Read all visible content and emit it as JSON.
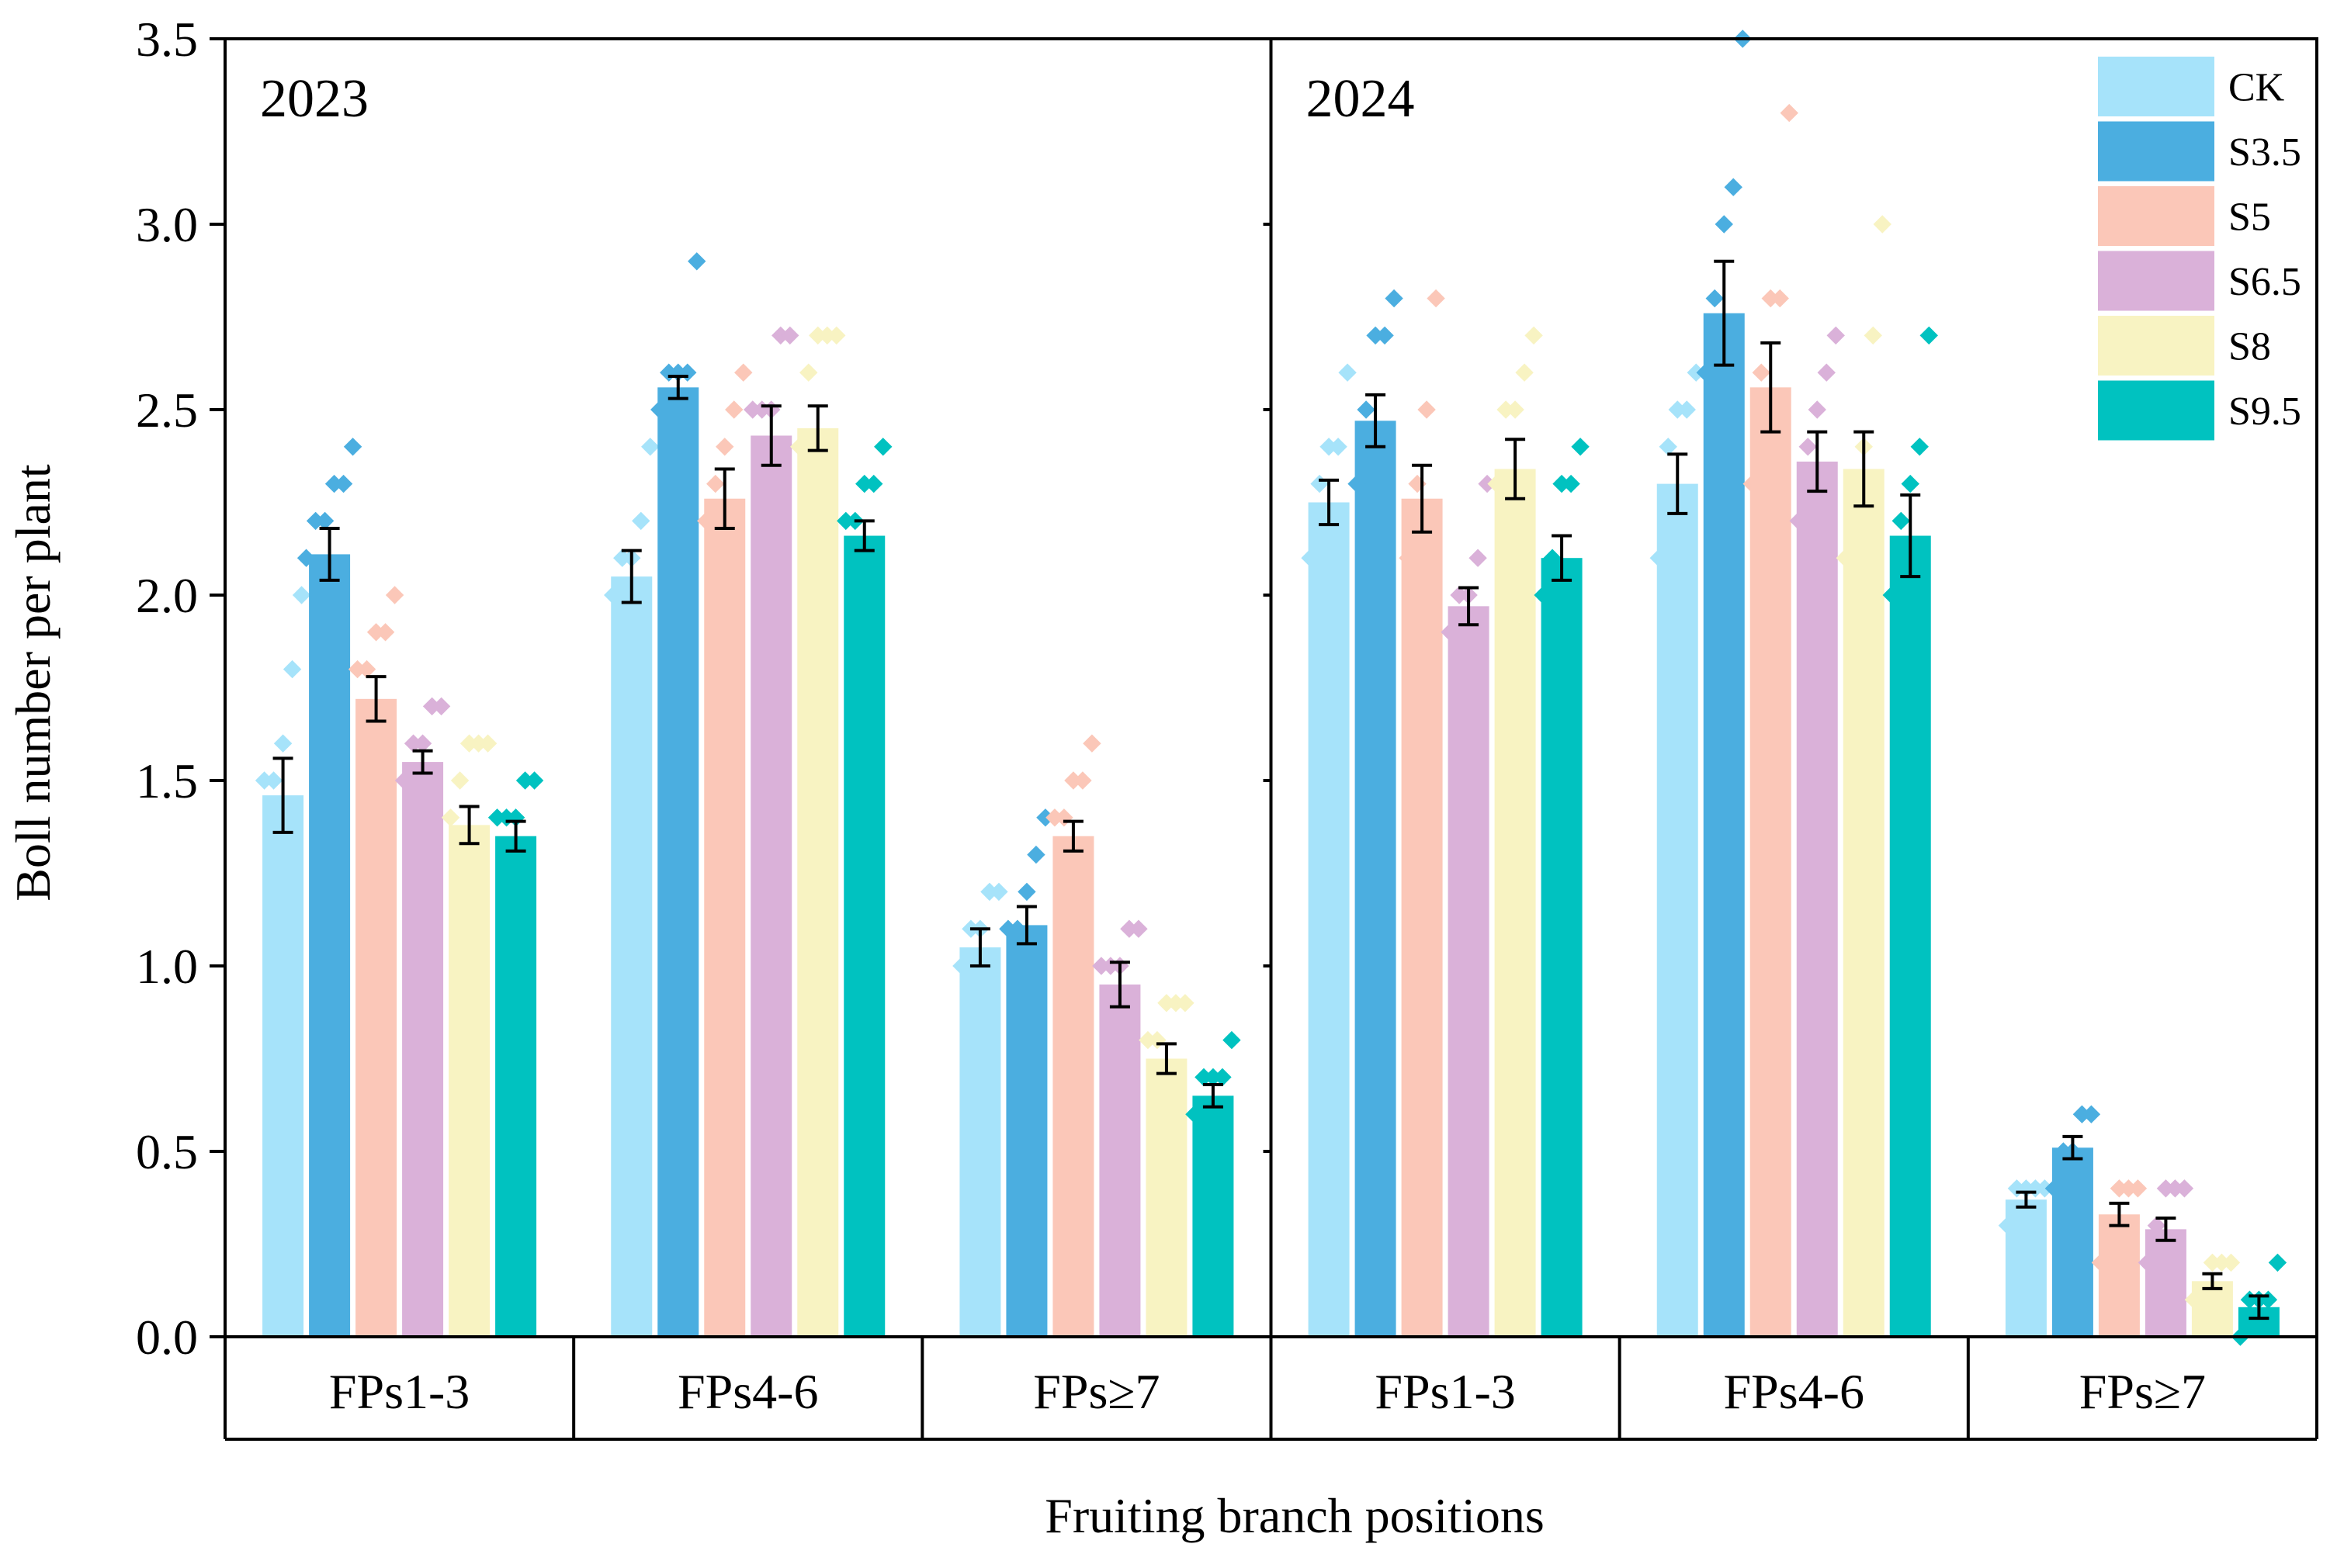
{
  "chart_data": {
    "type": "bar",
    "ylabel": "Boll number per plant",
    "xlabel": "Fruiting branch positions",
    "ylim": [
      0,
      3.5
    ],
    "yticks": [
      "0.0",
      "0.5",
      "1.0",
      "1.5",
      "2.0",
      "2.5",
      "3.0",
      "3.5"
    ],
    "legend_position": "top-right",
    "series": [
      {
        "name": "CK",
        "color": "#A6E3FA"
      },
      {
        "name": "S3.5",
        "color": "#4BAEE0"
      },
      {
        "name": "S5",
        "color": "#FBC7B8"
      },
      {
        "name": "S6.5",
        "color": "#DAB1D9"
      },
      {
        "name": "S8",
        "color": "#F8F3C2"
      },
      {
        "name": "S9.5",
        "color": "#00C2C0"
      }
    ],
    "panels": [
      {
        "title": "2023",
        "categories": [
          "FPs1-3",
          "FPs4-6",
          "FPs≥7"
        ],
        "values": [
          [
            1.46,
            2.11,
            1.72,
            1.55,
            1.38,
            1.35
          ],
          [
            2.05,
            2.56,
            2.26,
            2.43,
            2.45,
            2.16
          ],
          [
            1.05,
            1.11,
            1.35,
            0.95,
            0.75,
            0.65
          ]
        ],
        "errors": [
          [
            0.1,
            0.07,
            0.06,
            0.03,
            0.05,
            0.04
          ],
          [
            0.07,
            0.03,
            0.08,
            0.08,
            0.06,
            0.04
          ],
          [
            0.05,
            0.05,
            0.04,
            0.06,
            0.04,
            0.03
          ]
        ],
        "points": [
          [
            [
              1.5,
              1.5,
              1.6,
              1.8,
              2.0
            ],
            [
              2.1,
              2.2,
              2.2,
              2.3,
              2.3,
              2.4
            ],
            [
              1.8,
              1.8,
              1.9,
              1.9,
              2.0
            ],
            [
              1.5,
              1.6,
              1.6,
              1.7,
              1.7
            ],
            [
              1.4,
              1.5,
              1.6,
              1.6,
              1.6
            ],
            [
              1.4,
              1.4,
              1.4,
              1.5,
              1.5
            ]
          ],
          [
            [
              2.0,
              2.1,
              2.1,
              2.2,
              2.4
            ],
            [
              2.5,
              2.6,
              2.6,
              2.6,
              2.9
            ],
            [
              2.2,
              2.3,
              2.4,
              2.5,
              2.6
            ],
            [
              2.5,
              2.5,
              2.5,
              2.7,
              2.7
            ],
            [
              2.4,
              2.6,
              2.7,
              2.7,
              2.7
            ],
            [
              2.2,
              2.2,
              2.3,
              2.3,
              2.4
            ]
          ],
          [
            [
              1.0,
              1.1,
              1.1,
              1.2,
              1.2
            ],
            [
              1.1,
              1.1,
              1.2,
              1.3,
              1.4
            ],
            [
              1.4,
              1.4,
              1.5,
              1.5,
              1.6
            ],
            [
              1.0,
              1.0,
              1.0,
              1.1,
              1.1
            ],
            [
              0.8,
              0.8,
              0.9,
              0.9,
              0.9
            ],
            [
              0.6,
              0.7,
              0.7,
              0.7,
              0.8
            ]
          ]
        ]
      },
      {
        "title": "2024",
        "categories": [
          "FPs1-3",
          "FPs4-6",
          "FPs≥7"
        ],
        "values": [
          [
            2.25,
            2.47,
            2.26,
            1.97,
            2.34,
            2.1
          ],
          [
            2.3,
            2.76,
            2.56,
            2.36,
            2.34,
            2.16
          ],
          [
            0.37,
            0.51,
            0.33,
            0.29,
            0.15,
            0.08
          ]
        ],
        "errors": [
          [
            0.06,
            0.07,
            0.09,
            0.05,
            0.08,
            0.06
          ],
          [
            0.08,
            0.14,
            0.12,
            0.08,
            0.1,
            0.11
          ],
          [
            0.02,
            0.03,
            0.03,
            0.03,
            0.02,
            0.03
          ]
        ],
        "points": [
          [
            [
              2.1,
              2.3,
              2.4,
              2.4,
              2.6
            ],
            [
              2.3,
              2.5,
              2.7,
              2.7,
              2.8
            ],
            [
              2.1,
              2.3,
              2.5,
              2.8
            ],
            [
              1.9,
              2.0,
              2.0,
              2.1,
              2.3
            ],
            [
              2.3,
              2.5,
              2.5,
              2.6,
              2.7
            ],
            [
              2.0,
              2.1,
              2.3,
              2.3,
              2.4
            ]
          ],
          [
            [
              2.1,
              2.4,
              2.5,
              2.5,
              2.6
            ],
            [
              2.6,
              2.8,
              3.0,
              3.1,
              3.5
            ],
            [
              2.3,
              2.6,
              2.8,
              2.8,
              3.3
            ],
            [
              2.2,
              2.4,
              2.5,
              2.6,
              2.7
            ],
            [
              2.1,
              2.3,
              2.4,
              2.7,
              3.0
            ],
            [
              2.0,
              2.2,
              2.3,
              2.4,
              2.7
            ]
          ],
          [
            [
              0.3,
              0.4,
              0.4,
              0.4,
              0.4
            ],
            [
              0.4,
              0.5,
              0.5,
              0.6,
              0.6
            ],
            [
              0.2,
              0.3,
              0.4,
              0.4,
              0.4
            ],
            [
              0.2,
              0.3,
              0.4,
              0.4,
              0.4
            ],
            [
              0.1,
              0.1,
              0.2,
              0.2,
              0.2
            ],
            [
              0.0,
              0.1,
              0.1,
              0.1,
              0.2
            ]
          ]
        ]
      }
    ]
  }
}
